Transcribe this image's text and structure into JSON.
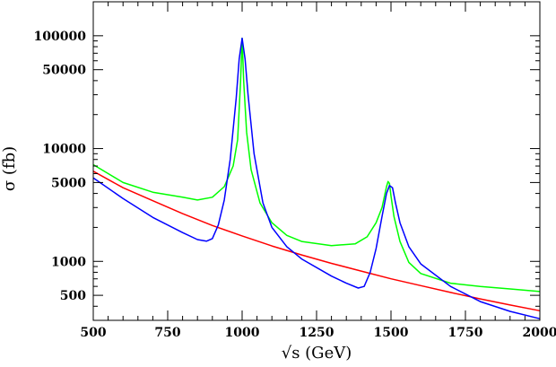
{
  "chart_data": {
    "type": "line",
    "xlabel": "√s (GeV)",
    "ylabel": "σ (fb)",
    "xscale": "linear",
    "yscale": "log",
    "xlim": [
      500,
      2000
    ],
    "ylim": [
      300,
      200000
    ],
    "grid": false,
    "xticks": [
      {
        "value": 500,
        "label": "500"
      },
      {
        "value": 750,
        "label": "750"
      },
      {
        "value": 1000,
        "label": "1000"
      },
      {
        "value": 1250,
        "label": "1250"
      },
      {
        "value": 1500,
        "label": "1500"
      },
      {
        "value": 1750,
        "label": "1750"
      },
      {
        "value": 2000,
        "label": "2000"
      }
    ],
    "yticks": [
      {
        "value": 500,
        "label": "500"
      },
      {
        "value": 1000,
        "label": "1000"
      },
      {
        "value": 5000,
        "label": "5000"
      },
      {
        "value": 10000,
        "label": "10000"
      },
      {
        "value": 50000,
        "label": "50000"
      },
      {
        "value": 100000,
        "label": "100000"
      }
    ],
    "series": [
      {
        "color": "#ff0000",
        "x": [
          500,
          600,
          700,
          800,
          900,
          1000,
          1100,
          1200,
          1300,
          1400,
          1500,
          1600,
          1700,
          1800,
          1900,
          2000
        ],
        "y": [
          6300,
          4500,
          3450,
          2650,
          2080,
          1680,
          1370,
          1140,
          960,
          820,
          700,
          610,
          530,
          465,
          410,
          365
        ]
      },
      {
        "color": "#00ff00",
        "x": [
          500,
          600,
          700,
          800,
          850,
          900,
          940,
          970,
          985,
          995,
          1000,
          1005,
          1015,
          1030,
          1060,
          1100,
          1150,
          1200,
          1300,
          1380,
          1420,
          1450,
          1470,
          1485,
          1490,
          1495,
          1500,
          1510,
          1530,
          1560,
          1600,
          1700,
          1800,
          1900,
          2000
        ],
        "y": [
          7200,
          5000,
          4100,
          3700,
          3500,
          3700,
          4600,
          7000,
          12000,
          40000,
          95000,
          40000,
          14000,
          6500,
          3300,
          2200,
          1700,
          1500,
          1380,
          1430,
          1650,
          2200,
          3000,
          4600,
          5100,
          4900,
          3800,
          2500,
          1500,
          980,
          780,
          640,
          600,
          570,
          540
        ]
      },
      {
        "color": "#0000ff",
        "x": [
          500,
          600,
          700,
          800,
          850,
          880,
          900,
          920,
          940,
          960,
          980,
          990,
          1000,
          1010,
          1020,
          1040,
          1070,
          1100,
          1150,
          1200,
          1300,
          1350,
          1390,
          1410,
          1430,
          1450,
          1470,
          1485,
          1495,
          1505,
          1515,
          1530,
          1560,
          1600,
          1700,
          1800,
          1900,
          2000
        ],
        "y": [
          5500,
          3600,
          2450,
          1800,
          1560,
          1510,
          1590,
          2100,
          3500,
          8000,
          28000,
          62000,
          95000,
          62000,
          30000,
          9000,
          3300,
          2000,
          1350,
          1050,
          740,
          640,
          580,
          600,
          800,
          1300,
          2500,
          4000,
          4700,
          4500,
          3300,
          2200,
          1350,
          950,
          600,
          440,
          360,
          310
        ]
      }
    ]
  }
}
